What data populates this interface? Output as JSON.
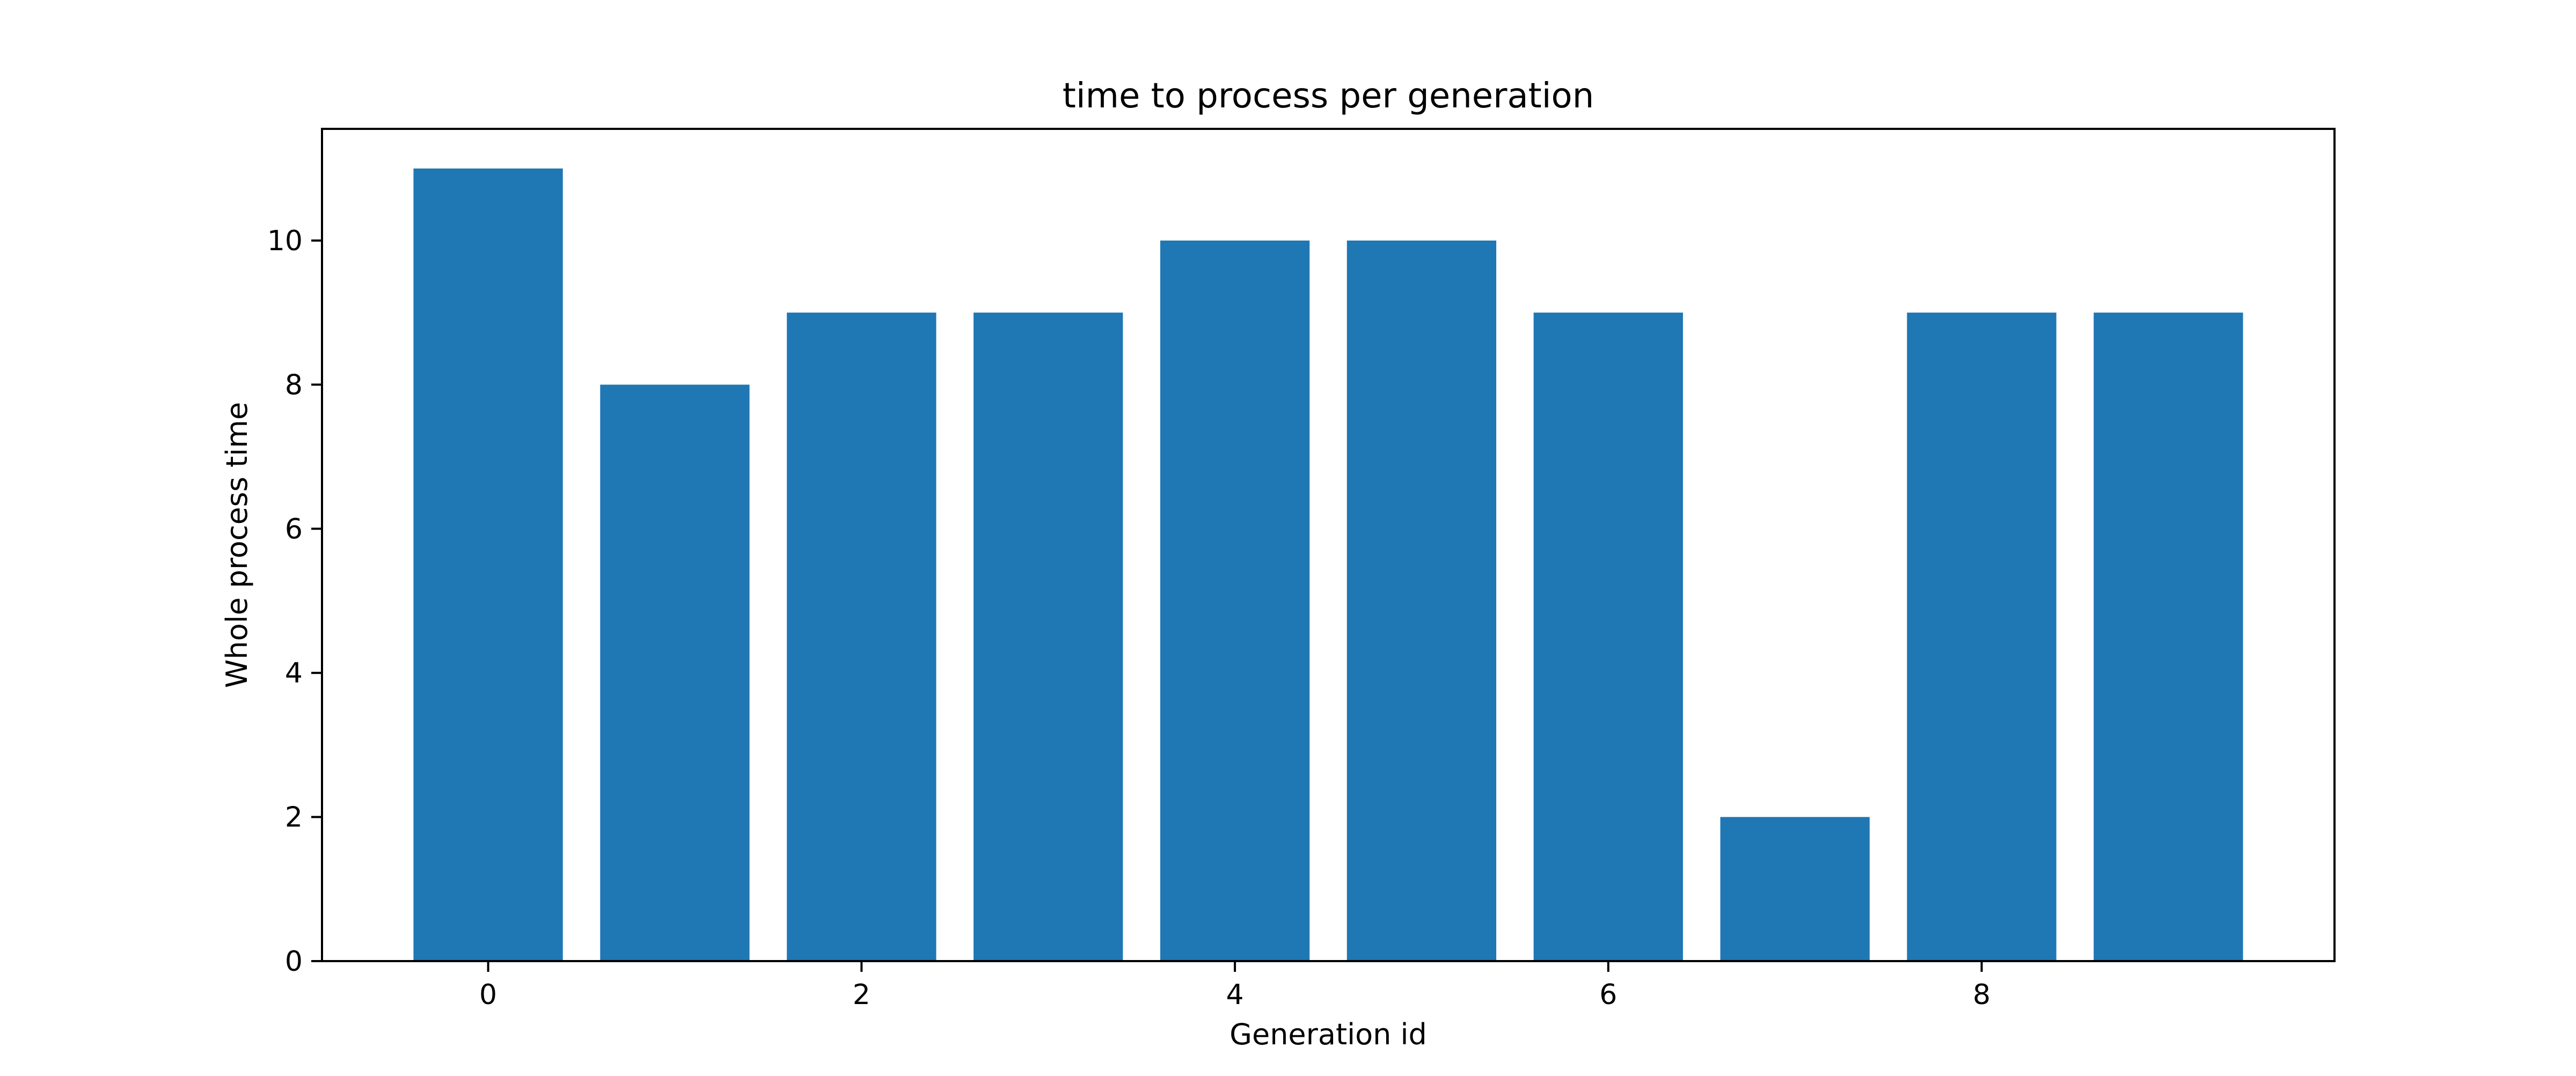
{
  "chart_data": {
    "type": "bar",
    "title": "time to process per generation",
    "xlabel": "Generation id",
    "ylabel": "Whole process time",
    "categories": [
      0,
      1,
      2,
      3,
      4,
      5,
      6,
      7,
      8,
      9
    ],
    "values": [
      11,
      8,
      9,
      9,
      10,
      10,
      9,
      2,
      9,
      9
    ],
    "xlim": [
      -0.89,
      9.89
    ],
    "ylim": [
      0,
      11.55
    ],
    "xticks": [
      0,
      2,
      4,
      6,
      8
    ],
    "yticks": [
      0,
      2,
      4,
      6,
      8,
      10
    ],
    "bar_color": "#1f77b4",
    "grid": false,
    "legend": "none"
  }
}
